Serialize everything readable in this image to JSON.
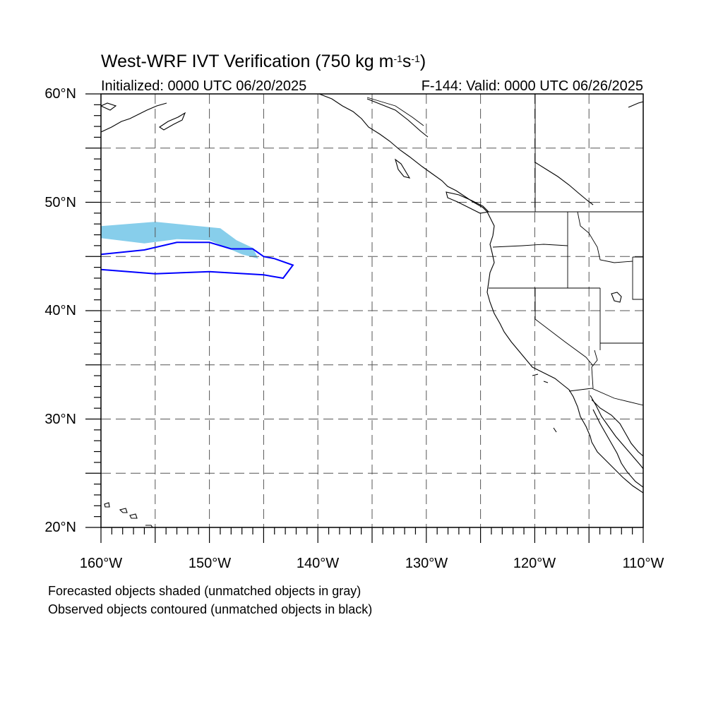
{
  "title": {
    "main": "West-WRF IVT Verification (750 kg m",
    "exp1": "-1",
    "mid": "s",
    "exp2": "-1",
    "close": ")"
  },
  "subtitle_left": "Initialized: 0000 UTC 06/20/2025",
  "subtitle_right": "F-144: Valid: 0000 UTC 06/26/2025",
  "axes": {
    "lat_labels": [
      "60°N",
      "50°N",
      "40°N",
      "30°N",
      "20°N"
    ],
    "lon_labels": [
      "160°W",
      "150°W",
      "140°W",
      "130°W",
      "120°W",
      "110°W"
    ],
    "lat_range": [
      20,
      60
    ],
    "lon_range": [
      -160,
      -110
    ],
    "gridline_interval_deg": 5,
    "grid": "dashed"
  },
  "notes": [
    "Forecasted objects shaded (unmatched objects in gray)",
    "Observed objects contoured (unmatched objects in black)"
  ],
  "colors": {
    "forecast_fill": "#87ceeb",
    "observed_contour": "#0000ff",
    "coastline": "#000000",
    "grid": "#555555"
  },
  "objects": {
    "forecast": {
      "shading": "light-blue",
      "lon_lat": [
        [
          -160,
          47.8
        ],
        [
          -155,
          48.2
        ],
        [
          -152,
          47.9
        ],
        [
          -149,
          47.6
        ],
        [
          -147.5,
          46.5
        ],
        [
          -146,
          45.8
        ],
        [
          -145.5,
          44.8
        ],
        [
          -147,
          45.2
        ],
        [
          -150,
          46.5
        ],
        [
          -153,
          46.6
        ],
        [
          -156,
          46.2
        ],
        [
          -160,
          46.7
        ]
      ]
    },
    "observed": {
      "contour": "blue",
      "lon_lat": [
        [
          -160,
          45.2
        ],
        [
          -156,
          45.6
        ],
        [
          -153,
          46.3
        ],
        [
          -150,
          46.3
        ],
        [
          -148,
          45.7
        ],
        [
          -146,
          45.7
        ],
        [
          -145,
          45.0
        ],
        [
          -144,
          44.8
        ],
        [
          -142.3,
          44.2
        ],
        [
          -143.2,
          43.0
        ],
        [
          -145,
          43.3
        ],
        [
          -150,
          43.6
        ],
        [
          -155,
          43.4
        ],
        [
          -160,
          43.8
        ]
      ]
    }
  }
}
